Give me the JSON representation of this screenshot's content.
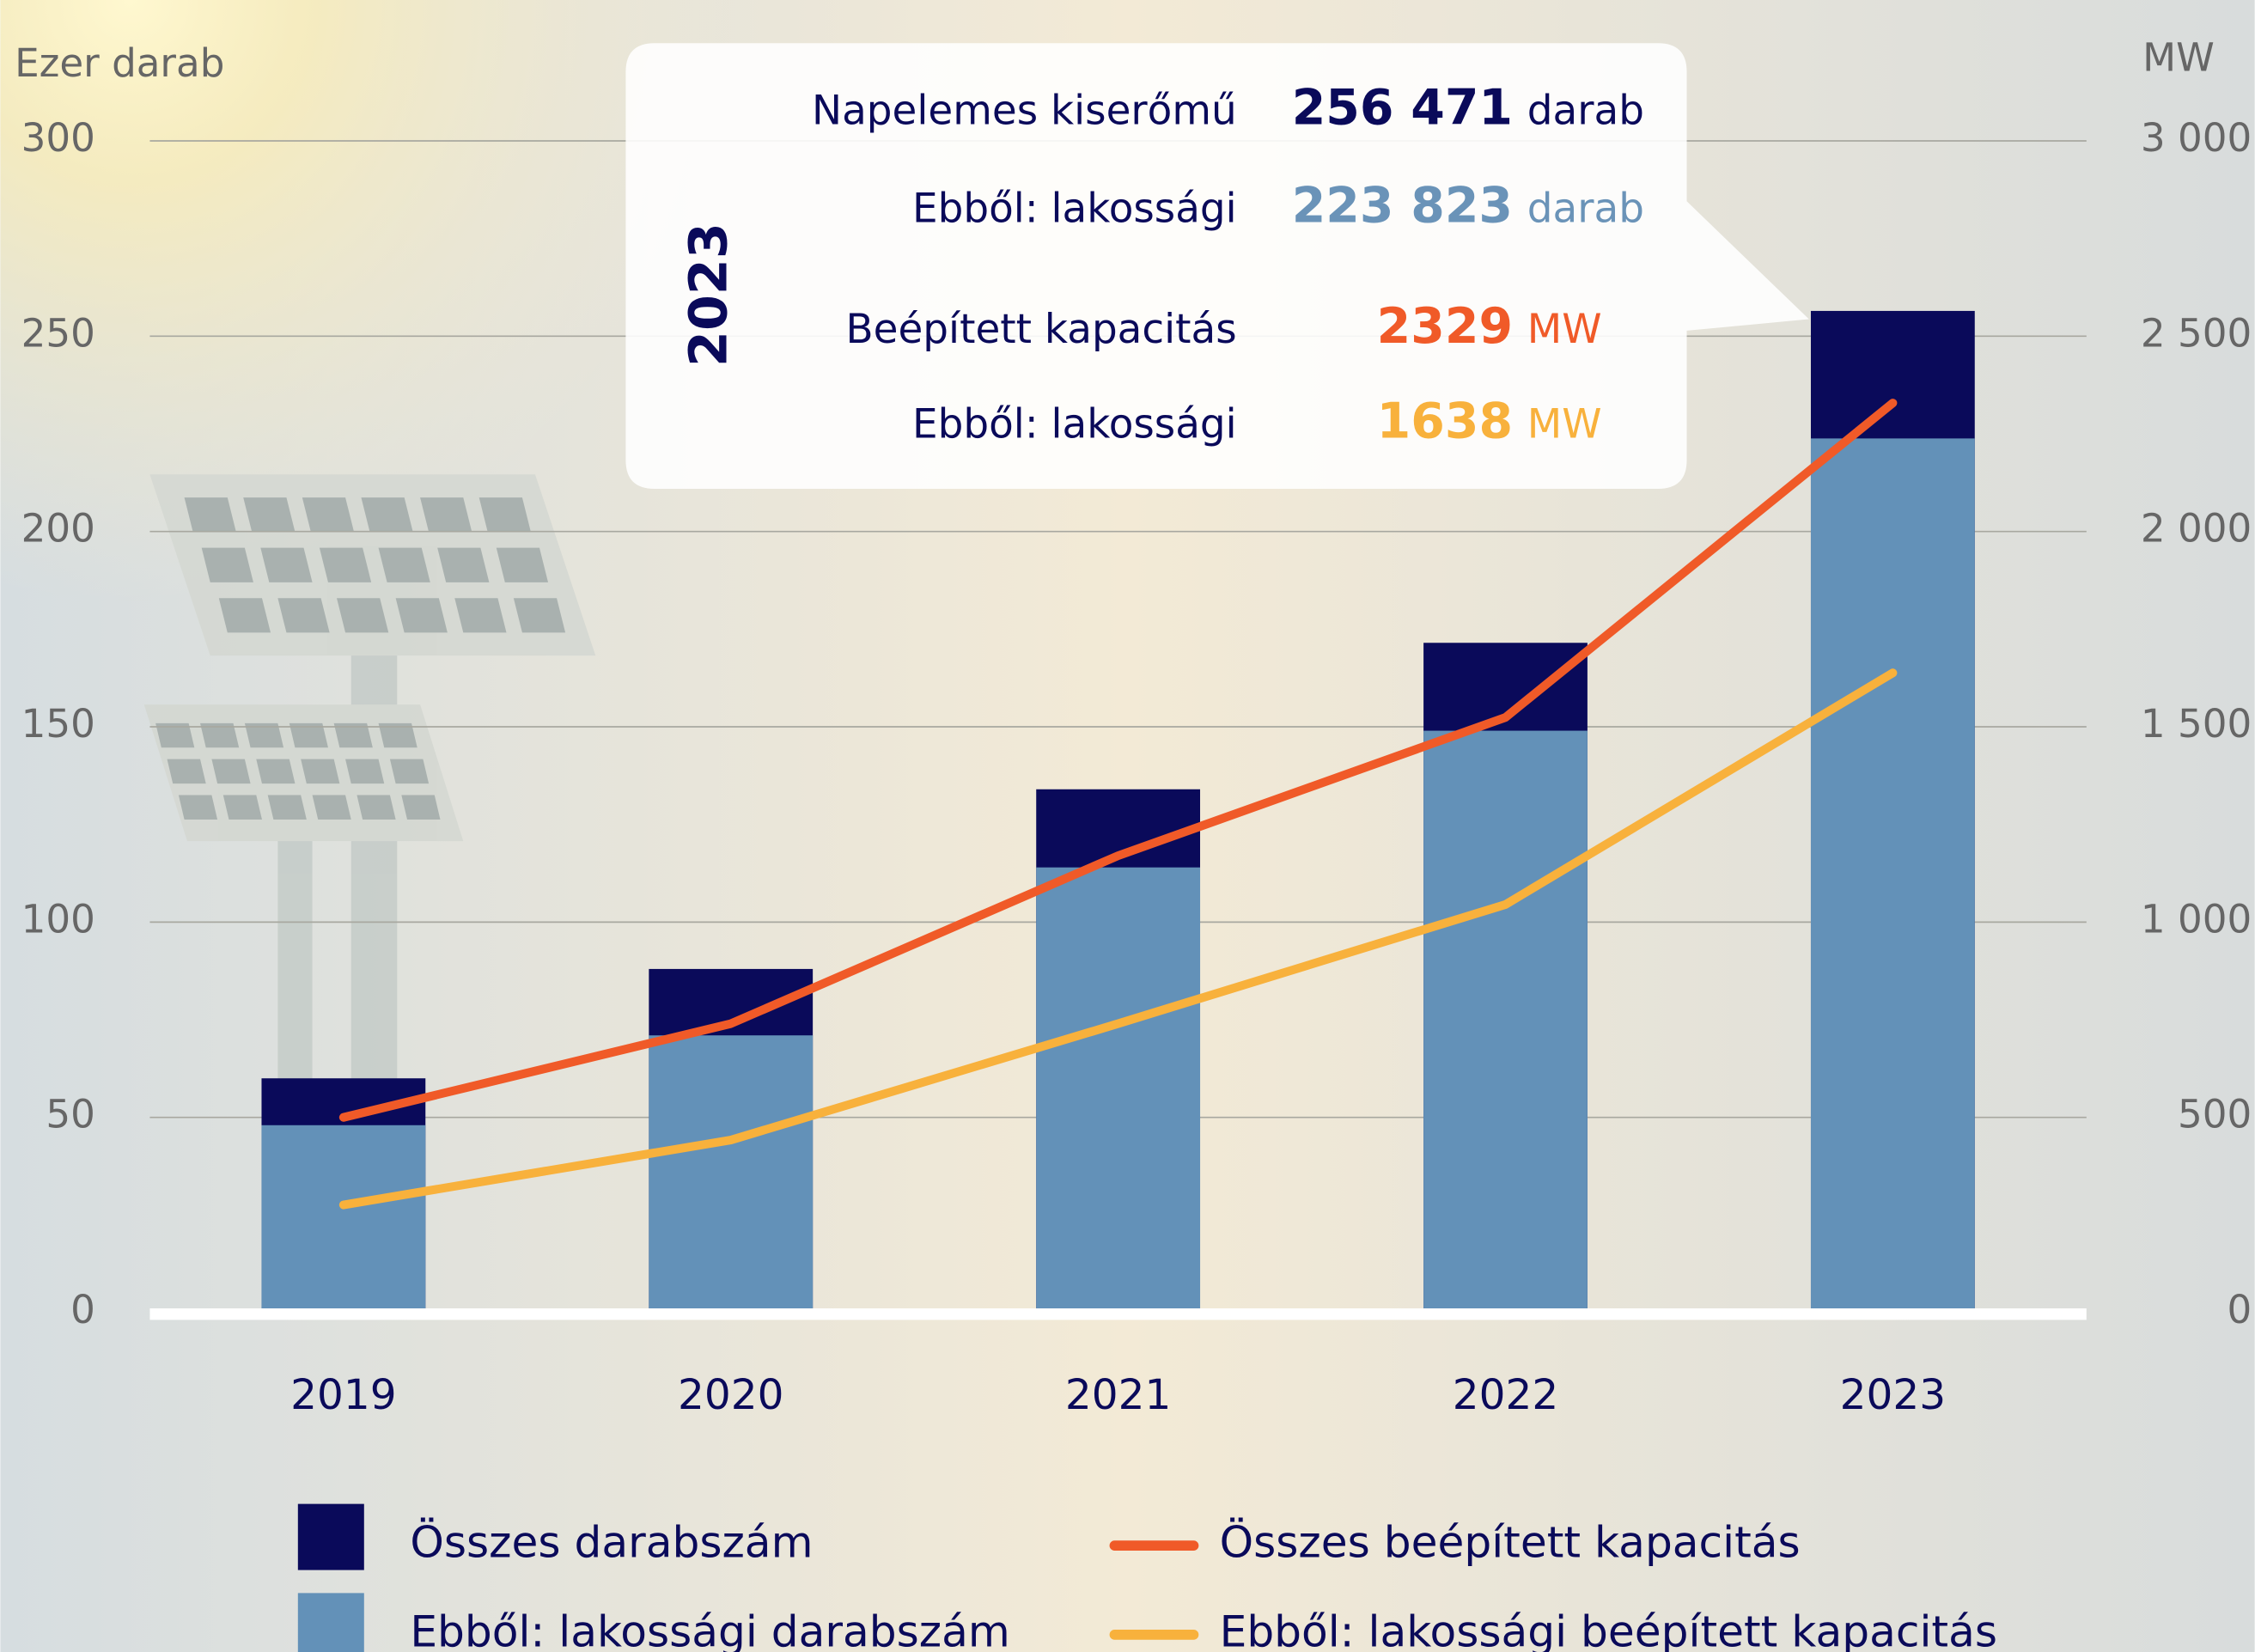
{
  "chart_data": {
    "type": "bar",
    "y_label": "Ezer darab",
    "y2_label": "MW",
    "categories": [
      "2019",
      "2020",
      "2021",
      "2022",
      "2023"
    ],
    "series": [
      {
        "name": "Összes darabszám",
        "type": "bar",
        "color": "#0a0a5a",
        "values": [
          60,
          88,
          134,
          171.5,
          256.471
        ]
      },
      {
        "name": "Ebből: lakossági darabszám",
        "type": "bar",
        "color": "#6391b8",
        "values": [
          48,
          71,
          114,
          149,
          223.823
        ]
      },
      {
        "name": "Összes beépített kapacitás",
        "type": "line",
        "axis": "y2",
        "color": "#f05a28",
        "values": [
          500,
          740,
          1170,
          1524,
          2329
        ]
      },
      {
        "name": "Ebből: lakossági beépített kapacitás",
        "type": "line",
        "axis": "y2",
        "color": "#f8b13c",
        "values": [
          276,
          442,
          740,
          1045,
          1638
        ]
      }
    ],
    "ylim": [
      0,
      300
    ],
    "yticks": [
      0,
      50,
      100,
      150,
      200,
      250,
      300
    ],
    "y2lim": [
      0,
      3000
    ],
    "y2ticks": [
      0,
      500,
      {
        "value": 1000,
        "label": "1 000"
      },
      {
        "value": 1500,
        "label": "1 500"
      },
      {
        "value": 2000,
        "label": "2 000"
      },
      {
        "value": 2500,
        "label": "2 500"
      },
      {
        "value": 3000,
        "label": "3 000"
      }
    ],
    "grid": true,
    "callout": {
      "year": "2023",
      "rows": [
        {
          "label": "Napelemes kiserőmű",
          "value": "256 471",
          "unit": "darab",
          "color": "#0a0a5a"
        },
        {
          "label": "Ebből: lakossági",
          "value": "223 823",
          "unit": "darab",
          "color": "#6a93b8"
        },
        {
          "label": "Beépített kapacitás",
          "value": "2329",
          "unit": "MW",
          "color": "#f05a28"
        },
        {
          "label": "Ebből: lakossági",
          "value": "1638",
          "unit": "MW",
          "color": "#f8b13c"
        }
      ]
    }
  }
}
